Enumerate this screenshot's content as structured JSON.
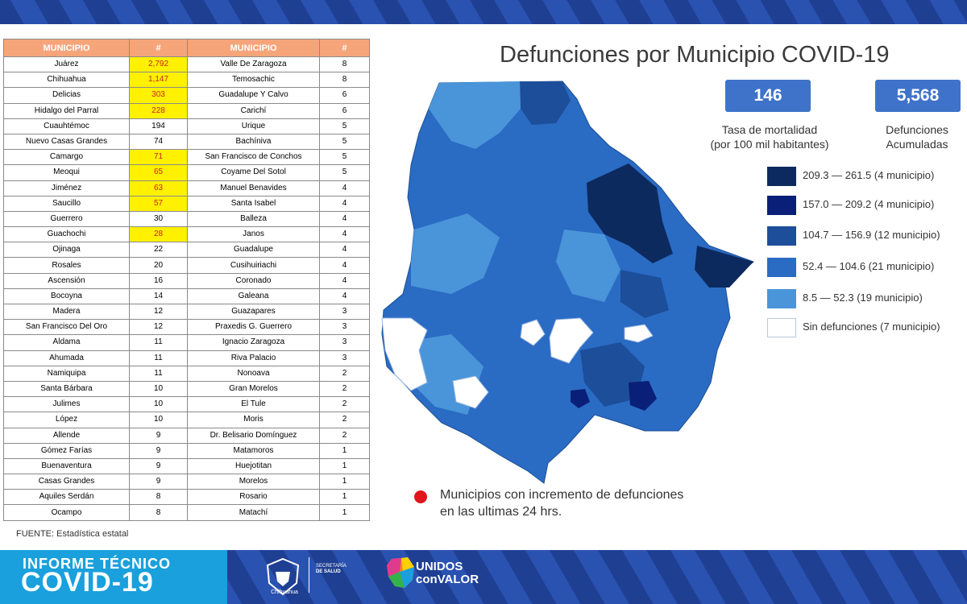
{
  "title": "Defunciones por Municipio COVID-19",
  "table": {
    "headers": [
      "MUNICIPIO",
      "#",
      "MUNICIPIO",
      "#"
    ],
    "left": [
      {
        "name": "Juárez",
        "value": "2,792",
        "highlight": true
      },
      {
        "name": "Chihuahua",
        "value": "1,147",
        "highlight": true
      },
      {
        "name": "Delicias",
        "value": "303",
        "highlight": true
      },
      {
        "name": "Hidalgo del Parral",
        "value": "228",
        "highlight": true
      },
      {
        "name": "Cuauhtémoc",
        "value": "194",
        "highlight": false
      },
      {
        "name": "Nuevo Casas Grandes",
        "value": "74",
        "highlight": false
      },
      {
        "name": "Camargo",
        "value": "71",
        "highlight": true
      },
      {
        "name": "Meoqui",
        "value": "65",
        "highlight": true
      },
      {
        "name": "Jiménez",
        "value": "63",
        "highlight": true
      },
      {
        "name": "Saucillo",
        "value": "57",
        "highlight": true
      },
      {
        "name": "Guerrero",
        "value": "30",
        "highlight": false
      },
      {
        "name": "Guachochi",
        "value": "28",
        "highlight": true
      },
      {
        "name": "Ojinaga",
        "value": "22",
        "highlight": false
      },
      {
        "name": "Rosales",
        "value": "20",
        "highlight": false
      },
      {
        "name": "Ascensión",
        "value": "16",
        "highlight": false
      },
      {
        "name": "Bocoyna",
        "value": "14",
        "highlight": false
      },
      {
        "name": "Madera",
        "value": "12",
        "highlight": false
      },
      {
        "name": "San Francisco Del Oro",
        "value": "12",
        "highlight": false
      },
      {
        "name": "Aldama",
        "value": "11",
        "highlight": false
      },
      {
        "name": "Ahumada",
        "value": "11",
        "highlight": false
      },
      {
        "name": "Namiquipa",
        "value": "11",
        "highlight": false
      },
      {
        "name": "Santa Bárbara",
        "value": "10",
        "highlight": false
      },
      {
        "name": "Julimes",
        "value": "10",
        "highlight": false
      },
      {
        "name": "López",
        "value": "10",
        "highlight": false
      },
      {
        "name": "Allende",
        "value": "9",
        "highlight": false
      },
      {
        "name": "Gómez Farías",
        "value": "9",
        "highlight": false
      },
      {
        "name": "Buenaventura",
        "value": "9",
        "highlight": false
      },
      {
        "name": "Casas Grandes",
        "value": "9",
        "highlight": false
      },
      {
        "name": "Aquiles Serdán",
        "value": "8",
        "highlight": false
      },
      {
        "name": "Ocampo",
        "value": "8",
        "highlight": false
      }
    ],
    "right": [
      {
        "name": "Valle De Zaragoza",
        "value": "8"
      },
      {
        "name": "Temosachic",
        "value": "8"
      },
      {
        "name": "Guadalupe Y Calvo",
        "value": "6"
      },
      {
        "name": "Carichí",
        "value": "6"
      },
      {
        "name": "Urique",
        "value": "5"
      },
      {
        "name": "Bachíniva",
        "value": "5"
      },
      {
        "name": "San Francisco de Conchos",
        "value": "5"
      },
      {
        "name": "Coyame Del Sotol",
        "value": "5"
      },
      {
        "name": "Manuel Benavides",
        "value": "4"
      },
      {
        "name": "Santa Isabel",
        "value": "4"
      },
      {
        "name": "Balleza",
        "value": "4"
      },
      {
        "name": "Janos",
        "value": "4"
      },
      {
        "name": "Guadalupe",
        "value": "4"
      },
      {
        "name": "Cusihuiriachi",
        "value": "4"
      },
      {
        "name": "Coronado",
        "value": "4"
      },
      {
        "name": "Galeana",
        "value": "4"
      },
      {
        "name": "Guazapares",
        "value": "3"
      },
      {
        "name": "Praxedis G. Guerrero",
        "value": "3"
      },
      {
        "name": "Ignacio Zaragoza",
        "value": "3"
      },
      {
        "name": "Riva Palacio",
        "value": "3"
      },
      {
        "name": "Nonoava",
        "value": "2"
      },
      {
        "name": "Gran Morelos",
        "value": "2"
      },
      {
        "name": "El Tule",
        "value": "2"
      },
      {
        "name": "Moris",
        "value": "2"
      },
      {
        "name": "Dr. Belisario Domínguez",
        "value": "2"
      },
      {
        "name": "Matamoros",
        "value": "1"
      },
      {
        "name": "Huejotitan",
        "value": "1"
      },
      {
        "name": "Morelos",
        "value": "1"
      },
      {
        "name": "Rosario",
        "value": "1"
      },
      {
        "name": "Matachí",
        "value": "1"
      }
    ]
  },
  "kpis": [
    {
      "value": "146",
      "label_line1": "Tasa de mortalidad",
      "label_line2": "(por 100 mil habitantes)"
    },
    {
      "value": "5,568",
      "label_line1": "Defunciones",
      "label_line2": "Acumuladas"
    }
  ],
  "legend": [
    {
      "label": "209.3 — 261.5 (4 municipio)",
      "color": "#0d2a5e"
    },
    {
      "label": "157.0 — 209.2 (4 municipio)",
      "color": "#0a1f78"
    },
    {
      "label": "104.7 — 156.9 (12 municipio)",
      "color": "#1d4e9a"
    },
    {
      "label": "52.4 — 104.6 (21 municipio)",
      "color": "#2a6bc4"
    },
    {
      "label": "8.5 — 52.3 (19 municipio)",
      "color": "#4a95d9"
    },
    {
      "label": "Sin defunciones (7 municipio)",
      "color": "#ffffff"
    }
  ],
  "footnote": "Municipios con incremento de defunciones en las ultimas 24 hrs.",
  "source": "FUENTE:  Estadística estatal",
  "banner": {
    "line1": "INFORME TÉCNICO",
    "line2": "COVID-19",
    "gov_name": "Chihuahua",
    "dept_line1": "SECRETARÍA",
    "dept_line2": "DE SALUD",
    "campaign_line1": "UNIDOS",
    "campaign_line2": "conVALOR"
  },
  "colors": {
    "header_orange": "#f6a57b",
    "highlight_yellow": "#fff100",
    "kpi_blue": "#3f73c9",
    "banner_cyan": "#1aa0dc",
    "band_blue": "#1f3f93",
    "marker_red": "#e0161b"
  }
}
